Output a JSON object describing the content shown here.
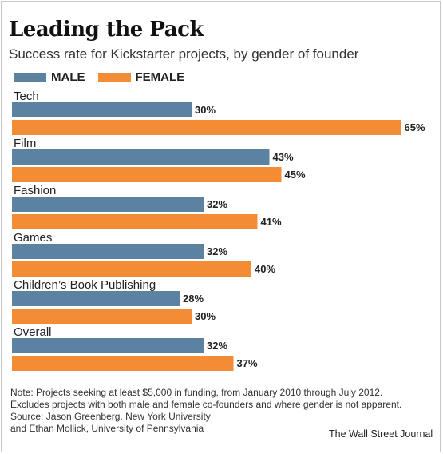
{
  "header": {
    "title": "Leading the Pack",
    "subtitle": "Success rate for Kickstarter projects, by gender of founder"
  },
  "legend": [
    {
      "label": "MALE",
      "color": "#5b82a0"
    },
    {
      "label": "FEMALE",
      "color": "#f28c35"
    }
  ],
  "chart_data": {
    "type": "bar",
    "orientation": "horizontal",
    "title": "Leading the Pack",
    "subtitle": "Success rate for Kickstarter projects, by gender of founder",
    "categories": [
      "Tech",
      "Film",
      "Fashion",
      "Games",
      "Children’s Book Publishing",
      "Overall"
    ],
    "series": [
      {
        "name": "MALE",
        "color": "#5b82a0",
        "values": [
          30,
          43,
          32,
          32,
          28,
          32
        ]
      },
      {
        "name": "FEMALE",
        "color": "#f28c35",
        "values": [
          65,
          45,
          41,
          40,
          30,
          37
        ]
      }
    ],
    "value_suffix": "%",
    "xlim": [
      0,
      65
    ],
    "grid": false,
    "legend_position": "top-left"
  },
  "footer": {
    "note_lines": [
      "Note: Projects seeking at least $5,000 in funding, from January 2010 through July 2012.",
      "Excludes projects with both male and female co-founders and where gender is not apparent.",
      "Source: Jason Greenberg, New York University",
      "and Ethan Mollick, University of Pennsylvania"
    ],
    "credit": "The Wall Street Journal"
  }
}
